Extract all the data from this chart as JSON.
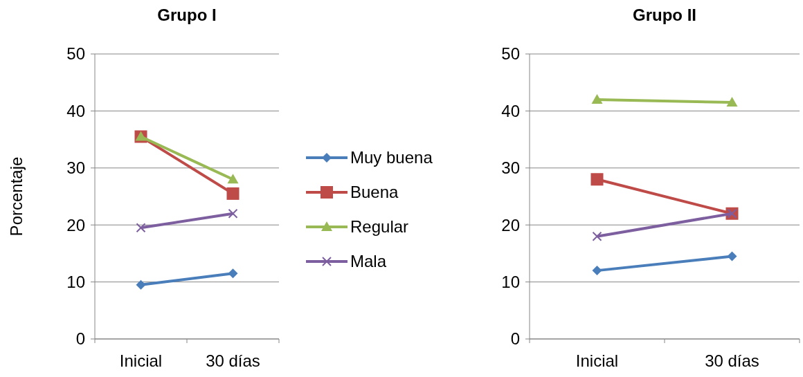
{
  "chart_data": [
    {
      "type": "line",
      "title": "Grupo I",
      "ylabel": "Porcentaje",
      "categories": [
        "Inicial",
        "30 días"
      ],
      "ylim": [
        0,
        50
      ],
      "yticks": [
        0,
        10,
        20,
        30,
        40,
        50
      ],
      "grid": "y",
      "legend": "right",
      "series": [
        {
          "name": "Muy buena",
          "color": "#4a7ebb",
          "marker": "diamond",
          "values": [
            9.5,
            11.5
          ]
        },
        {
          "name": "Buena",
          "color": "#be4b48",
          "marker": "square",
          "values": [
            35.5,
            25.5
          ]
        },
        {
          "name": "Regular",
          "color": "#98b954",
          "marker": "triangle",
          "values": [
            35.5,
            28
          ]
        },
        {
          "name": "Mala",
          "color": "#7d5fa0",
          "marker": "cross",
          "values": [
            19.5,
            22
          ]
        }
      ]
    },
    {
      "type": "line",
      "title": "Grupo II",
      "categories": [
        "Inicial",
        "30 días"
      ],
      "ylim": [
        0,
        50
      ],
      "yticks": [
        0,
        10,
        20,
        30,
        40,
        50
      ],
      "grid": "y",
      "series": [
        {
          "color": "#4a7ebb",
          "marker": "diamond",
          "values": [
            12,
            14.5
          ]
        },
        {
          "color": "#be4b48",
          "marker": "square",
          "values": [
            28,
            22
          ]
        },
        {
          "color": "#98b954",
          "marker": "triangle",
          "values": [
            42,
            41.5
          ]
        },
        {
          "color": "#7d5fa0",
          "marker": "cross",
          "values": [
            18,
            22
          ]
        }
      ]
    }
  ]
}
